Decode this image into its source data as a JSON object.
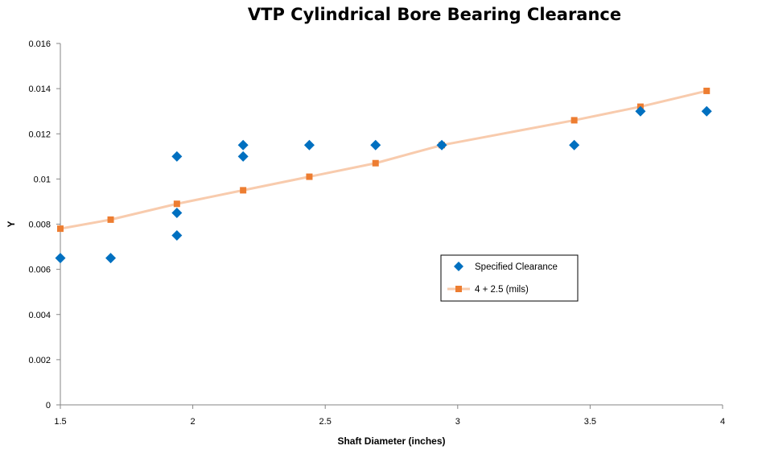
{
  "chart_data": {
    "type": "scatter",
    "title": "VTP Cylindrical Bore Bearing Clearance",
    "xlabel": "Shaft Diameter (inches)",
    "ylabel": "Y",
    "xlim": [
      1.5,
      4
    ],
    "ylim": [
      0,
      0.016
    ],
    "x_ticks": [
      "1.5",
      "2",
      "2.5",
      "3",
      "3.5",
      "4"
    ],
    "y_ticks": [
      "0",
      "0.002",
      "0.004",
      "0.006",
      "0.008",
      "0.01",
      "0.012",
      "0.014",
      "0.016"
    ],
    "grid": false,
    "legend_position": "center-right",
    "series": [
      {
        "name": "Specified Clearance",
        "marker": "diamond",
        "color": "#0070C0",
        "points": [
          [
            1.5,
            0.0065
          ],
          [
            1.69,
            0.0065
          ],
          [
            1.94,
            0.0075
          ],
          [
            1.94,
            0.0085
          ],
          [
            1.94,
            0.011
          ],
          [
            2.19,
            0.011
          ],
          [
            2.19,
            0.0115
          ],
          [
            2.44,
            0.0115
          ],
          [
            2.69,
            0.0115
          ],
          [
            2.94,
            0.0115
          ],
          [
            3.44,
            0.0115
          ],
          [
            3.69,
            0.013
          ],
          [
            3.94,
            0.013
          ]
        ]
      },
      {
        "name": "4 + 2.5 (mils)",
        "marker": "square",
        "color": "#ED7D31",
        "line_color": "#F8CBAD",
        "points": [
          [
            1.5,
            0.0078
          ],
          [
            1.69,
            0.0082
          ],
          [
            1.94,
            0.0089
          ],
          [
            2.19,
            0.0095
          ],
          [
            2.44,
            0.0101
          ],
          [
            2.69,
            0.0107
          ],
          [
            2.94,
            0.0115
          ],
          [
            3.44,
            0.0126
          ],
          [
            3.69,
            0.0132
          ],
          [
            3.94,
            0.0139
          ]
        ]
      }
    ]
  }
}
